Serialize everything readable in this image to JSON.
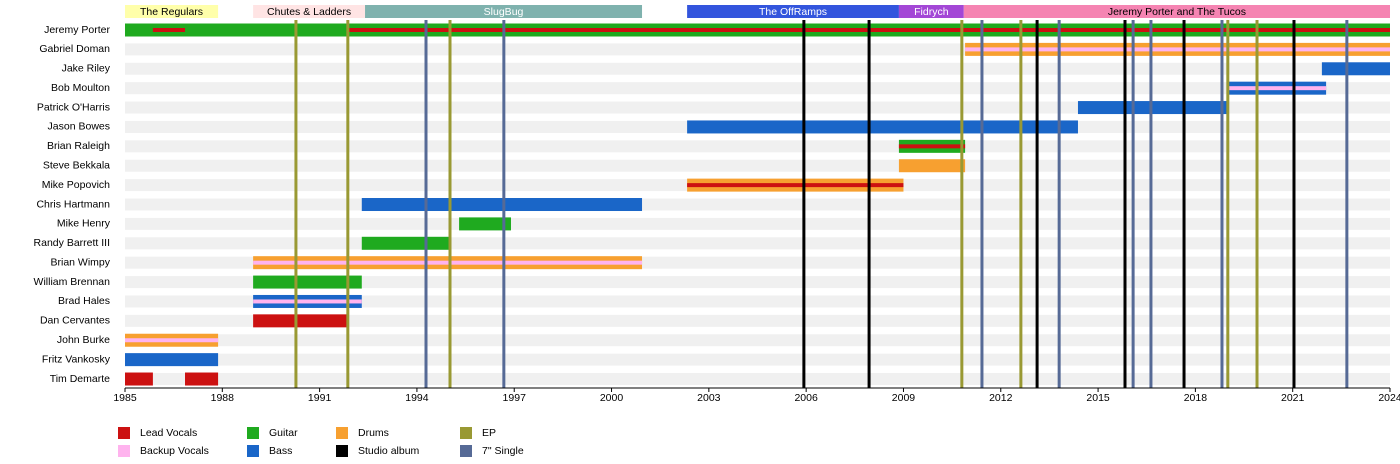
{
  "chart_data": {
    "type": "timeline",
    "xlim": [
      1985,
      2024
    ],
    "xticks": [
      1985,
      1988,
      1991,
      1994,
      1997,
      2000,
      2003,
      2006,
      2009,
      2012,
      2015,
      2018,
      2021,
      2024
    ],
    "periods": [
      {
        "name": "The Regulars",
        "start": 1985,
        "end": 1987.87,
        "color": "#ffffaa",
        "text_color": "#000000"
      },
      {
        "name": "Chutes & Ladders",
        "start": 1988.95,
        "end": 1992.4,
        "color": "#ffe4e4",
        "text_color": "#000000"
      },
      {
        "name": "SlugBug",
        "start": 1992.4,
        "end": 2000.94,
        "color": "#7fb2ae",
        "text_color": "#ffffff"
      },
      {
        "name": "The OffRamps",
        "start": 2002.33,
        "end": 2008.86,
        "color": "#3355dd",
        "text_color": "#ffffff"
      },
      {
        "name": "Fidrych",
        "start": 2008.86,
        "end": 2010.86,
        "color": "#a347d6",
        "text_color": "#ffffff"
      },
      {
        "name": "Jeremy Porter and The Tucos",
        "start": 2010.86,
        "end": 2024,
        "color": "#f584b2",
        "text_color": "#000000"
      }
    ],
    "legend": [
      {
        "name": "Lead Vocals",
        "color": "#cc1111"
      },
      {
        "name": "Backup Vocals",
        "color": "#ffb3ee"
      },
      {
        "name": "Guitar",
        "color": "#1faa1f"
      },
      {
        "name": "Bass",
        "color": "#1a66c8"
      },
      {
        "name": "Drums",
        "color": "#f7a030"
      },
      {
        "name": "Studio album",
        "color": "#000000"
      },
      {
        "name": "EP",
        "color": "#999933"
      },
      {
        "name": "7\" Single",
        "color": "#566a96"
      }
    ],
    "members": [
      {
        "name": "Jeremy Porter",
        "bars": [
          {
            "role": "Guitar",
            "start": 1985,
            "end": 2024
          },
          {
            "role": "Lead Vocals",
            "start": 1985.86,
            "end": 1986.85
          },
          {
            "role": "Lead Vocals",
            "start": 1991.87,
            "end": 2024
          }
        ]
      },
      {
        "name": "Gabriel Doman",
        "bars": [
          {
            "role": "Drums",
            "start": 2010.9,
            "end": 2024
          },
          {
            "role": "Backup Vocals",
            "start": 2010.9,
            "end": 2024
          }
        ]
      },
      {
        "name": "Jake Riley",
        "bars": [
          {
            "role": "Bass",
            "start": 2021.9,
            "end": 2024
          }
        ]
      },
      {
        "name": "Bob Moulton",
        "bars": [
          {
            "role": "Bass",
            "start": 2019.0,
            "end": 2022.03
          },
          {
            "role": "Backup Vocals",
            "start": 2019.0,
            "end": 2022.03
          }
        ]
      },
      {
        "name": "Patrick O'Harris",
        "bars": [
          {
            "role": "Bass",
            "start": 2014.38,
            "end": 2019.0
          }
        ]
      },
      {
        "name": "Jason Bowes",
        "bars": [
          {
            "role": "Bass",
            "start": 2002.33,
            "end": 2014.38
          }
        ]
      },
      {
        "name": "Brian Raleigh",
        "bars": [
          {
            "role": "Guitar",
            "start": 2008.86,
            "end": 2010.9
          },
          {
            "role": "Lead Vocals",
            "start": 2008.86,
            "end": 2010.9
          }
        ]
      },
      {
        "name": "Steve Bekkala",
        "bars": [
          {
            "role": "Drums",
            "start": 2008.86,
            "end": 2010.9
          }
        ]
      },
      {
        "name": "Mike Popovich",
        "bars": [
          {
            "role": "Drums",
            "start": 2002.33,
            "end": 2009.0
          },
          {
            "role": "Lead Vocals",
            "start": 2002.33,
            "end": 2009.0
          }
        ]
      },
      {
        "name": "Chris Hartmann",
        "bars": [
          {
            "role": "Bass",
            "start": 1992.3,
            "end": 2000.94
          }
        ]
      },
      {
        "name": "Mike Henry",
        "bars": [
          {
            "role": "Guitar",
            "start": 1995.3,
            "end": 1996.9
          }
        ]
      },
      {
        "name": "Randy Barrett III",
        "bars": [
          {
            "role": "Guitar",
            "start": 1992.3,
            "end": 1995.02
          }
        ]
      },
      {
        "name": "Brian Wimpy",
        "bars": [
          {
            "role": "Drums",
            "start": 1988.95,
            "end": 2000.94
          },
          {
            "role": "Backup Vocals",
            "start": 1988.95,
            "end": 2000.94
          }
        ]
      },
      {
        "name": "William Brennan",
        "bars": [
          {
            "role": "Guitar",
            "start": 1988.95,
            "end": 1992.3
          }
        ]
      },
      {
        "name": "Brad Hales",
        "bars": [
          {
            "role": "Bass",
            "start": 1988.95,
            "end": 1992.3
          },
          {
            "role": "Backup Vocals",
            "start": 1988.95,
            "end": 1992.3
          }
        ]
      },
      {
        "name": "Dan Cervantes",
        "bars": [
          {
            "role": "Lead Vocals",
            "start": 1988.95,
            "end": 1991.87
          }
        ]
      },
      {
        "name": "John Burke",
        "bars": [
          {
            "role": "Drums",
            "start": 1985,
            "end": 1987.87
          },
          {
            "role": "Backup Vocals",
            "start": 1985,
            "end": 1987.87
          }
        ]
      },
      {
        "name": "Fritz Vankosky",
        "bars": [
          {
            "role": "Bass",
            "start": 1985,
            "end": 1987.87
          }
        ]
      },
      {
        "name": "Tim Demarte",
        "bars": [
          {
            "role": "Lead Vocals",
            "start": 1985,
            "end": 1985.86
          },
          {
            "role": "Lead Vocals",
            "start": 1986.85,
            "end": 1987.87
          }
        ]
      }
    ],
    "events": [
      {
        "name": "Studio album",
        "x": [
          2005.93,
          2007.94,
          2013.12,
          2015.83,
          2017.65,
          2021.04
        ]
      },
      {
        "name": "EP",
        "x": [
          1990.27,
          1991.87,
          1995.02,
          2010.8,
          2012.62,
          2019.0,
          2019.9
        ]
      },
      {
        "name": "7\" Single",
        "x": [
          1994.28,
          1996.68,
          2011.42,
          2013.8,
          2016.08,
          2016.63,
          2018.82,
          2022.67
        ]
      }
    ]
  }
}
